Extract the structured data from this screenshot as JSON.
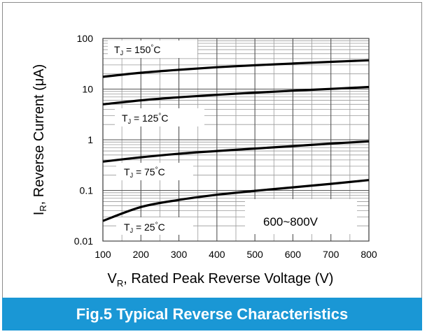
{
  "chart_data": {
    "type": "line",
    "title": "Fig.5 Typical Reverse Characteristics",
    "xlabel": {
      "main": "V",
      "sub": "R",
      "rest": ", Rated  Peak Reverse Voltage (V)"
    },
    "ylabel": {
      "main": "I",
      "sub": "R",
      "rest": ", Reverse Current (",
      "mu": "μ",
      "end": "A)"
    },
    "x_scale": "linear",
    "y_scale": "log",
    "xlim": [
      100,
      800
    ],
    "ylim": [
      0.01,
      100
    ],
    "x_ticks": [
      "100",
      "200",
      "300",
      "400",
      "500",
      "600",
      "700",
      "800"
    ],
    "y_ticks": [
      "0.01",
      "0.1",
      "1",
      "10",
      "100"
    ],
    "grid": true,
    "x": [
      100,
      200,
      300,
      400,
      500,
      600,
      700,
      800
    ],
    "series": [
      {
        "label": {
          "pre": "T",
          "sub": "J",
          "post": " = 150",
          "deg": "°",
          "unit": "C"
        },
        "values": [
          17.5,
          21,
          24,
          27,
          29.5,
          32,
          34.5,
          37
        ]
      },
      {
        "label": {
          "pre": "T",
          "sub": "J",
          "post": " = 125",
          "deg": "°",
          "unit": "C"
        },
        "values": [
          5.0,
          6.0,
          6.9,
          7.7,
          8.5,
          9.3,
          10.1,
          11
        ]
      },
      {
        "label": {
          "pre": "T",
          "sub": "J",
          "post": " = 75",
          "deg": "°",
          "unit": "C"
        },
        "values": [
          0.37,
          0.45,
          0.53,
          0.6,
          0.67,
          0.75,
          0.84,
          0.93
        ]
      },
      {
        "label": {
          "pre": "T",
          "sub": "J",
          "post": " = 25",
          "deg": "°",
          "unit": "C"
        },
        "values": [
          0.025,
          0.047,
          0.065,
          0.082,
          0.098,
          0.115,
          0.135,
          0.16
        ]
      }
    ],
    "annotation": "600~800V"
  },
  "colors": {
    "accent": "#1a97d5",
    "curve": "#000000",
    "grid": "#9a9a9a"
  }
}
